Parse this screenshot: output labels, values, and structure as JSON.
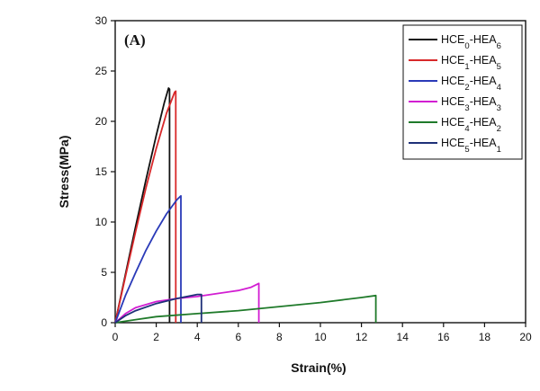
{
  "chart_data": {
    "type": "line",
    "panel_label": "(A)",
    "xlabel": "Strain(%)",
    "ylabel": "Stress(MPa)",
    "xlim": [
      0,
      20
    ],
    "ylim": [
      0,
      30
    ],
    "xticks": [
      0,
      2,
      4,
      6,
      8,
      10,
      12,
      14,
      16,
      18,
      20
    ],
    "yticks": [
      0,
      5,
      10,
      15,
      20,
      25,
      30
    ],
    "grid": false,
    "legend_position": "top-right",
    "series": [
      {
        "name": "HCE0-HEA6",
        "label_parts": {
          "a": "HCE",
          "sa": "0",
          "b": "-HEA",
          "sb": "6"
        },
        "color": "#111111",
        "points": [
          [
            0,
            0
          ],
          [
            0.5,
            4.8
          ],
          [
            1.0,
            9.6
          ],
          [
            1.5,
            14.2
          ],
          [
            2.0,
            18.6
          ],
          [
            2.4,
            21.9
          ],
          [
            2.6,
            23.3
          ],
          [
            2.65,
            23.2
          ],
          [
            2.65,
            0
          ]
        ]
      },
      {
        "name": "HCE1-HEA5",
        "label_parts": {
          "a": "HCE",
          "sa": "1",
          "b": "-HEA",
          "sb": "5"
        },
        "color": "#d8282a",
        "points": [
          [
            0,
            0
          ],
          [
            0.5,
            4.6
          ],
          [
            1.0,
            9.1
          ],
          [
            1.5,
            13.4
          ],
          [
            2.0,
            17.3
          ],
          [
            2.5,
            20.8
          ],
          [
            2.9,
            22.9
          ],
          [
            2.95,
            23.0
          ],
          [
            2.95,
            0
          ]
        ]
      },
      {
        "name": "HCE2-HEA4",
        "label_parts": {
          "a": "HCE",
          "sa": "2",
          "b": "-HEA",
          "sb": "4"
        },
        "color": "#2a3ab8",
        "points": [
          [
            0,
            0
          ],
          [
            0.5,
            2.7
          ],
          [
            1.0,
            5.0
          ],
          [
            1.5,
            7.2
          ],
          [
            2.0,
            9.1
          ],
          [
            2.5,
            10.8
          ],
          [
            3.0,
            12.2
          ],
          [
            3.2,
            12.6
          ],
          [
            3.2,
            0
          ]
        ]
      },
      {
        "name": "HCE3-HEA3",
        "label_parts": {
          "a": "HCE",
          "sa": "3",
          "b": "-HEA",
          "sb": "3"
        },
        "color": "#d21ed2",
        "points": [
          [
            0,
            0
          ],
          [
            0.5,
            0.9
          ],
          [
            1.0,
            1.5
          ],
          [
            2.0,
            2.1
          ],
          [
            3.0,
            2.4
          ],
          [
            4.0,
            2.6
          ],
          [
            5.0,
            2.9
          ],
          [
            6.0,
            3.2
          ],
          [
            6.6,
            3.5
          ],
          [
            7.0,
            3.9
          ],
          [
            7.0,
            0
          ]
        ]
      },
      {
        "name": "HCE4-HEA2",
        "label_parts": {
          "a": "HCE",
          "sa": "4",
          "b": "-HEA",
          "sb": "2"
        },
        "color": "#1f7a2a",
        "points": [
          [
            0,
            0
          ],
          [
            1.0,
            0.3
          ],
          [
            2.0,
            0.6
          ],
          [
            4.0,
            0.9
          ],
          [
            6.0,
            1.2
          ],
          [
            8.0,
            1.6
          ],
          [
            10.0,
            2.0
          ],
          [
            12.0,
            2.5
          ],
          [
            12.7,
            2.7
          ],
          [
            12.7,
            0
          ]
        ]
      },
      {
        "name": "HCE5-HEA1",
        "label_parts": {
          "a": "HCE",
          "sa": "5",
          "b": "-HEA",
          "sb": "1"
        },
        "color": "#1e3078",
        "points": [
          [
            0,
            0
          ],
          [
            0.5,
            0.7
          ],
          [
            1.0,
            1.2
          ],
          [
            2.0,
            1.9
          ],
          [
            3.0,
            2.4
          ],
          [
            4.0,
            2.8
          ],
          [
            4.2,
            2.8
          ],
          [
            4.2,
            0
          ]
        ]
      }
    ]
  }
}
